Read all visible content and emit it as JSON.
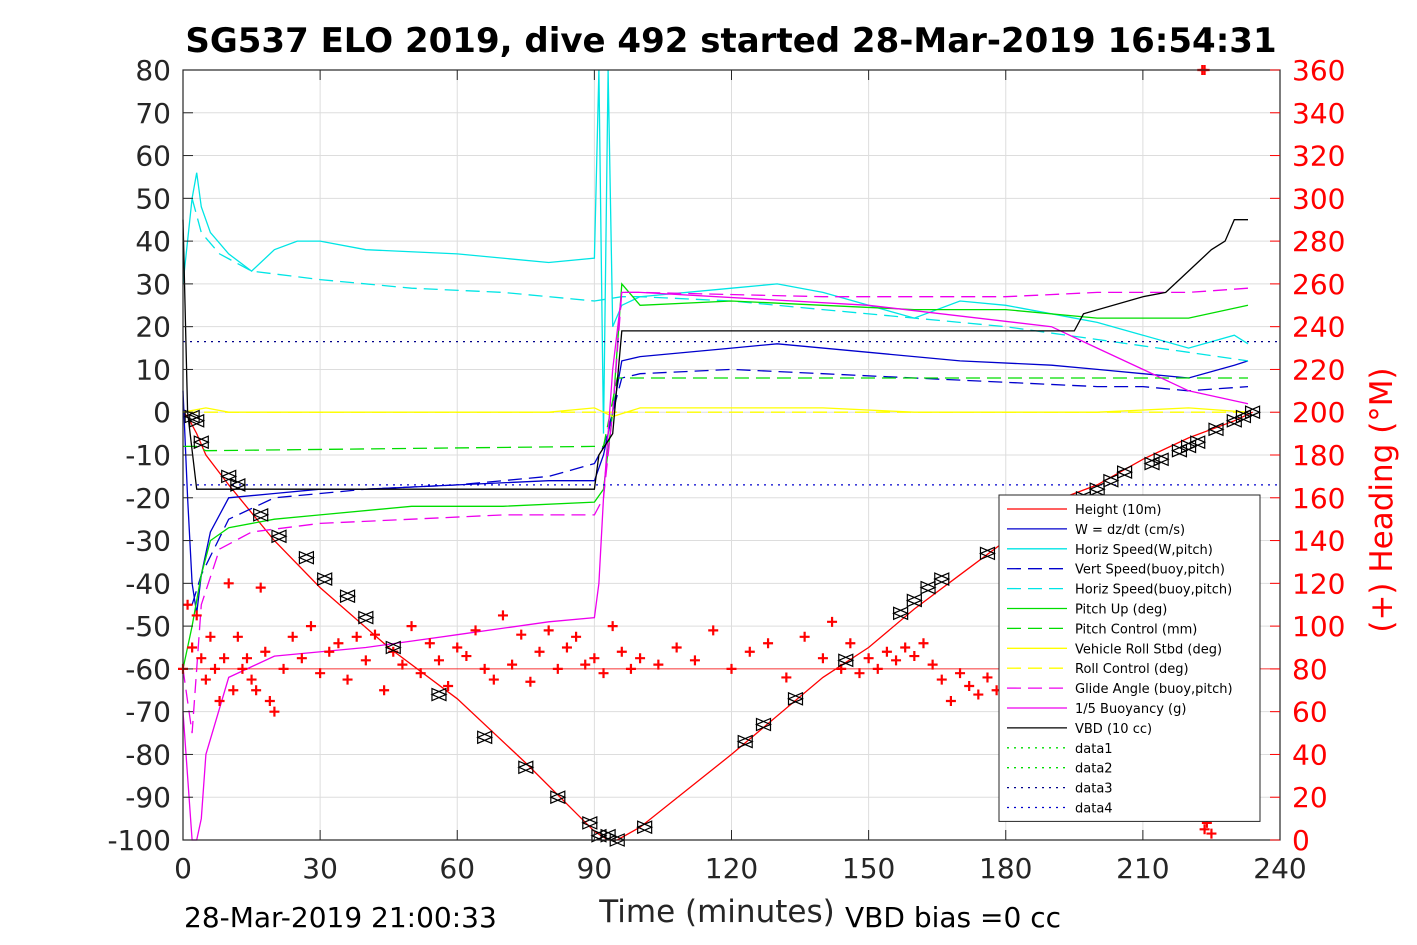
{
  "chart_data": {
    "type": "line",
    "title": "SG537 ELO 2019, dive 492 started 28-Mar-2019 16:54:31",
    "xlabel": "Time (minutes)",
    "ylabel": "",
    "y2label": "(+) Heading (°M)",
    "xlim": [
      0,
      240
    ],
    "ylim": [
      -100,
      80
    ],
    "y2lim": [
      0,
      360
    ],
    "x_ticks": [
      "0",
      "30",
      "60",
      "90",
      "120",
      "150",
      "180",
      "210",
      "240"
    ],
    "y_ticks": [
      "80",
      "70",
      "60",
      "50",
      "40",
      "30",
      "20",
      "10",
      "0",
      "-10",
      "-20",
      "-30",
      "-40",
      "-50",
      "-60",
      "-70",
      "-80",
      "-90",
      "-100"
    ],
    "y2_ticks": [
      "360",
      "340",
      "320",
      "300",
      "280",
      "260",
      "240",
      "220",
      "200",
      "180",
      "160",
      "140",
      "120",
      "100",
      "80",
      "60",
      "40",
      "20",
      "0"
    ],
    "grid": true,
    "legend_position": "lower-right",
    "footer_left": "28-Mar-2019 21:00:33",
    "footer_right": "VBD bias =0 cc",
    "colors": {
      "red": "#ff0000",
      "blue": "#0000cd",
      "cyan": "#00e5e5",
      "green": "#00dd00",
      "yellow": "#ffff00",
      "magenta": "#ee00ee",
      "black": "#000000"
    },
    "series": [
      {
        "name": "Height (10m)",
        "color": "#ff0000",
        "dash": "solid",
        "x": [
          0,
          1,
          3,
          5,
          10,
          20,
          30,
          45,
          60,
          75,
          90,
          93,
          95,
          100,
          120,
          140,
          150,
          160,
          170,
          180,
          190,
          200,
          210,
          220,
          230,
          234
        ],
        "y": [
          0,
          -1,
          -5,
          -10,
          -17,
          -30,
          -41,
          -55,
          -67,
          -82,
          -98,
          -100,
          -100,
          -97,
          -80,
          -62,
          -55,
          -46,
          -38,
          -30,
          -21,
          -17,
          -11,
          -6,
          -2,
          0
        ]
      },
      {
        "name": "W = dz/dt (cm/s)",
        "color": "#0000cd",
        "dash": "solid",
        "x": [
          0,
          1,
          2,
          3,
          4,
          6,
          10,
          20,
          30,
          40,
          60,
          80,
          90,
          92,
          94,
          96,
          100,
          120,
          130,
          150,
          170,
          190,
          200,
          210,
          220,
          230,
          233
        ],
        "y": [
          5,
          -20,
          -40,
          -47,
          -38,
          -28,
          -20,
          -19,
          -18,
          -18,
          -17,
          -16,
          -16,
          -10,
          0,
          12,
          13,
          15,
          16,
          14,
          12,
          11,
          10,
          9,
          8,
          11,
          12
        ]
      },
      {
        "name": "Horiz Speed(W,pitch)",
        "color": "#00e5e5",
        "dash": "solid",
        "x": [
          0,
          2,
          3,
          4,
          6,
          10,
          15,
          20,
          25,
          30,
          40,
          60,
          80,
          90,
          91,
          92,
          93,
          94,
          96,
          100,
          120,
          130,
          140,
          150,
          160,
          170,
          180,
          190,
          200,
          210,
          220,
          230,
          233
        ],
        "y": [
          30,
          50,
          56,
          48,
          42,
          37,
          33,
          38,
          40,
          40,
          38,
          37,
          35,
          36,
          80,
          -5,
          80,
          20,
          25,
          27,
          29,
          30,
          28,
          25,
          22,
          26,
          25,
          23,
          21,
          18,
          15,
          18,
          16
        ]
      },
      {
        "name": "Vert Speed(buoy,pitch)",
        "color": "#0000cd",
        "dash": "dashed",
        "x": [
          2,
          4,
          10,
          20,
          30,
          40,
          60,
          80,
          90,
          92,
          94,
          96,
          100,
          120,
          140,
          160,
          180,
          200,
          210,
          220,
          233
        ],
        "y": [
          -45,
          -38,
          -25,
          -20,
          -19,
          -18,
          -17,
          -15,
          -12,
          -8,
          0,
          8,
          9,
          10,
          9,
          8,
          7,
          6,
          6,
          5,
          6
        ]
      },
      {
        "name": "Horiz Speed(buoy,pitch)",
        "color": "#00e5e5",
        "dash": "dashed",
        "x": [
          2,
          4,
          8,
          15,
          30,
          50,
          70,
          90,
          96,
          100,
          120,
          140,
          160,
          180,
          200,
          220,
          233
        ],
        "y": [
          50,
          42,
          37,
          33,
          31,
          29,
          28,
          26,
          27,
          27,
          26,
          24,
          22,
          20,
          17,
          14,
          12
        ]
      },
      {
        "name": "Pitch Up (deg)",
        "color": "#00dd00",
        "dash": "solid",
        "x": [
          0,
          2,
          4,
          6,
          10,
          20,
          30,
          50,
          70,
          90,
          92,
          94,
          96,
          100,
          120,
          140,
          160,
          180,
          200,
          220,
          233
        ],
        "y": [
          -60,
          -50,
          -38,
          -30,
          -27,
          -25,
          -24,
          -22,
          -22,
          -21,
          -18,
          0,
          30,
          25,
          26,
          25,
          24,
          24,
          22,
          22,
          25
        ]
      },
      {
        "name": "Pitch Control (mm)",
        "color": "#00dd00",
        "dash": "dashed",
        "x": [
          0,
          3,
          5,
          90,
          92,
          95,
          233
        ],
        "y": [
          -8,
          -8,
          -9,
          -8,
          -8,
          8,
          8
        ]
      },
      {
        "name": "Vehicle Roll Stbd (deg)",
        "color": "#ffff00",
        "dash": "solid",
        "x": [
          0,
          5,
          10,
          20,
          40,
          60,
          80,
          90,
          92,
          94,
          100,
          140,
          160,
          180,
          200,
          220,
          233
        ],
        "y": [
          0,
          1,
          0,
          0,
          0,
          0,
          0,
          1,
          0,
          -1,
          1,
          1,
          0,
          0,
          0,
          1,
          0
        ]
      },
      {
        "name": "Roll Control (deg)",
        "color": "#ffff00",
        "dash": "dashed",
        "x": [
          0,
          233
        ],
        "y": [
          0,
          0
        ]
      },
      {
        "name": "Glide Angle (buoy,pitch)",
        "color": "#ee00ee",
        "dash": "dashed",
        "x": [
          0,
          2,
          4,
          8,
          15,
          30,
          50,
          70,
          90,
          92,
          94,
          96,
          100,
          140,
          160,
          180,
          200,
          220,
          233
        ],
        "y": [
          -60,
          -75,
          -45,
          -32,
          -28,
          -26,
          -25,
          -24,
          -24,
          -20,
          0,
          28,
          28,
          27,
          27,
          27,
          28,
          28,
          29
        ]
      },
      {
        "name": "1/5 Buoyancy (g)",
        "color": "#ee00ee",
        "dash": "solid",
        "x": [
          0,
          2,
          3,
          4,
          5,
          10,
          20,
          40,
          60,
          80,
          90,
          91,
          92,
          94,
          96,
          100,
          150,
          190,
          200,
          210,
          220,
          233
        ],
        "y": [
          -70,
          -100,
          -100,
          -95,
          -80,
          -62,
          -57,
          -55,
          -52,
          -49,
          -48,
          -40,
          -20,
          10,
          28,
          28,
          25,
          20,
          15,
          10,
          5,
          2
        ]
      },
      {
        "name": "VBD (10 cc)",
        "color": "#000000",
        "dash": "solid",
        "x": [
          0,
          1,
          3,
          90,
          91,
          94,
          96,
          195,
          197,
          210,
          215,
          218,
          222,
          225,
          228,
          230,
          233
        ],
        "y": [
          45,
          0,
          -18,
          -18,
          -10,
          -5,
          19,
          19,
          23,
          27,
          28,
          31,
          35,
          38,
          40,
          45,
          45
        ]
      },
      {
        "name": "data1",
        "color": "#00dd00",
        "dash": "dotted",
        "x": [],
        "y": []
      },
      {
        "name": "data2",
        "color": "#00dd00",
        "dash": "dotted",
        "x": [],
        "y": []
      },
      {
        "name": "data3",
        "color": "#00008b",
        "dash": "dotted",
        "x": [
          0,
          240
        ],
        "y": [
          16.5,
          16.5
        ]
      },
      {
        "name": "data4",
        "color": "#0000cd",
        "dash": "dotted",
        "x": [
          0,
          240
        ],
        "y": [
          -17,
          -17
        ]
      }
    ],
    "reference_line": {
      "color": "#ff0000",
      "y2": 80
    },
    "heading_markers": {
      "color": "#ff0000",
      "symbol": "+",
      "x": [
        0,
        1,
        2,
        3,
        4,
        5,
        6,
        7,
        8,
        9,
        10,
        11,
        12,
        13,
        14,
        15,
        16,
        17,
        18,
        19,
        20,
        22,
        24,
        26,
        28,
        30,
        32,
        34,
        36,
        38,
        40,
        42,
        44,
        46,
        48,
        50,
        52,
        54,
        56,
        58,
        60,
        62,
        64,
        66,
        68,
        70,
        72,
        74,
        76,
        78,
        80,
        82,
        84,
        86,
        88,
        90,
        92,
        94,
        96,
        98,
        100,
        104,
        108,
        112,
        116,
        120,
        124,
        128,
        132,
        136,
        140,
        142,
        144,
        146,
        148,
        150,
        152,
        154,
        156,
        158,
        160,
        162,
        164,
        166,
        168,
        170,
        172,
        174,
        176,
        178,
        180,
        182
      ],
      "y2": [
        80,
        110,
        90,
        105,
        85,
        75,
        95,
        80,
        65,
        85,
        120,
        70,
        95,
        80,
        85,
        75,
        70,
        118,
        88,
        65,
        60,
        80,
        95,
        85,
        100,
        78,
        88,
        92,
        75,
        95,
        84,
        96,
        70,
        88,
        82,
        100,
        78,
        92,
        84,
        72,
        90,
        86,
        98,
        80,
        75,
        105,
        82,
        96,
        74,
        88,
        98,
        80,
        90,
        95,
        82,
        85,
        78,
        100,
        88,
        80,
        85,
        82,
        90,
        84,
        98,
        80,
        88,
        92,
        76,
        95,
        85,
        102,
        80,
        92,
        78,
        85,
        80,
        88,
        84,
        90,
        86,
        92,
        82,
        75,
        65,
        78,
        72,
        68,
        76,
        70,
        74,
        72
      ],
      "extra_x": [
        223,
        223.5,
        224,
        224.5,
        225,
        223.5
      ],
      "extra_y2": [
        360,
        5,
        8,
        12,
        3,
        360
      ]
    },
    "depth_markers": {
      "color": "#000000",
      "symbol": "triangles",
      "x": [
        2,
        3,
        4,
        10,
        12,
        17,
        21,
        27,
        31,
        36,
        40,
        46,
        56,
        66,
        75,
        82,
        89,
        91,
        93,
        95,
        101,
        123,
        127,
        134,
        145,
        157,
        160,
        163,
        166,
        176,
        197,
        200,
        203,
        206,
        212,
        214,
        218,
        220,
        222,
        226,
        230,
        232,
        234
      ],
      "y": [
        -1,
        -2,
        -7,
        -15,
        -17,
        -24,
        -29,
        -34,
        -39,
        -43,
        -48,
        -55,
        -66,
        -76,
        -83,
        -90,
        -96,
        -99,
        -99,
        -100,
        -97,
        -77,
        -73,
        -67,
        -58,
        -47,
        -44,
        -41,
        -39,
        -33,
        -20,
        -18,
        -16,
        -14,
        -12,
        -11,
        -9,
        -8,
        -7,
        -4,
        -2,
        -1,
        0
      ]
    }
  }
}
